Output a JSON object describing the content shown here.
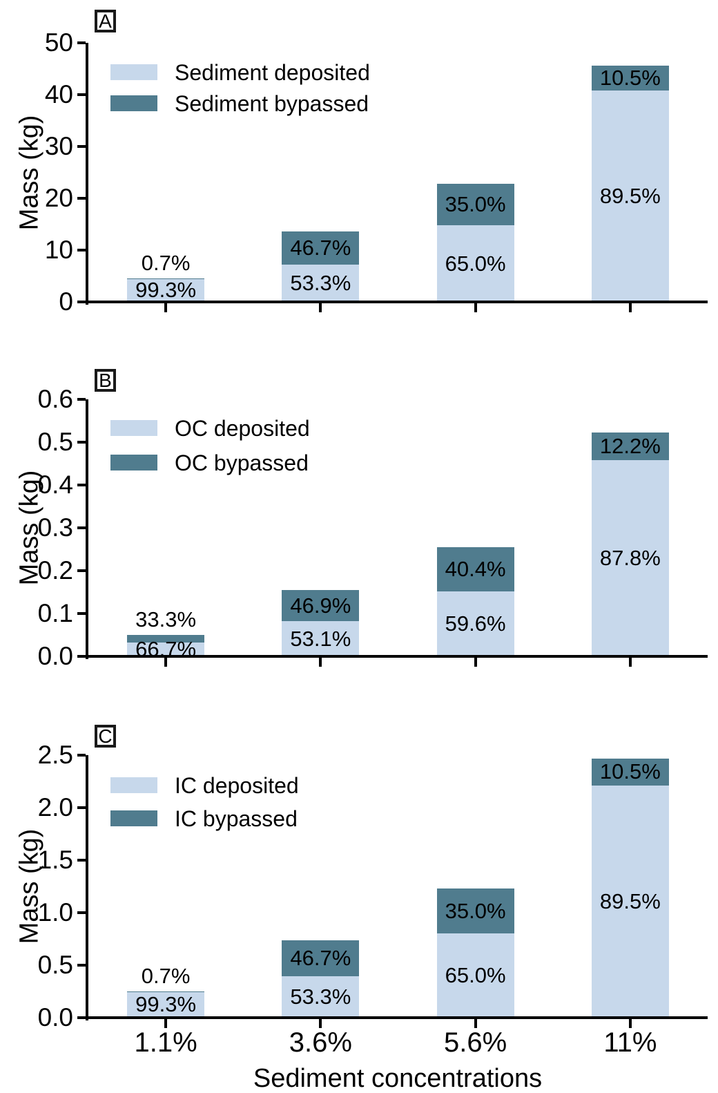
{
  "figure": {
    "xlabel": "Sediment concentrations",
    "colors": {
      "deposited": "#c7d8eb",
      "bypassed": "#507c8e",
      "axis": "#000000",
      "text": "#000000",
      "background": "#ffffff"
    }
  },
  "chart_data": [
    {
      "type": "bar",
      "stacked": true,
      "panel_letter": "A",
      "title": "",
      "ylabel": "Mass (kg)",
      "ylim": [
        0,
        50
      ],
      "yticks": [
        "0",
        "10",
        "20",
        "30",
        "40",
        "50"
      ],
      "categories": [
        "1.1%",
        "3.6%",
        "5.6%",
        "11%"
      ],
      "legend_position": "upper left",
      "grid": false,
      "series": [
        {
          "name": "Sediment deposited",
          "values": [
            4.57,
            7.22,
            14.79,
            40.81
          ],
          "percent_labels": [
            "99.3%",
            "53.3%",
            "65.0%",
            "89.5%"
          ]
        },
        {
          "name": "Sediment bypassed",
          "values": [
            0.03,
            6.33,
            7.96,
            4.79
          ],
          "percent_labels": [
            "0.7%",
            "46.7%",
            "35.0%",
            "10.5%"
          ],
          "label_above_bar": [
            true,
            false,
            false,
            false
          ]
        }
      ]
    },
    {
      "type": "bar",
      "stacked": true,
      "panel_letter": "B",
      "title": "",
      "ylabel": "Mass (kg)",
      "ylim": [
        0,
        0.6
      ],
      "yticks": [
        "0.0",
        "0.1",
        "0.2",
        "0.3",
        "0.4",
        "0.5",
        "0.6"
      ],
      "categories": [
        "1.1%",
        "3.6%",
        "5.6%",
        "11%"
      ],
      "legend_position": "upper left",
      "grid": false,
      "series": [
        {
          "name": "OC deposited",
          "values": [
            0.033,
            0.082,
            0.152,
            0.458
          ],
          "percent_labels": [
            "66.7%",
            "53.1%",
            "59.6%",
            "87.8%"
          ]
        },
        {
          "name": "OC bypassed",
          "values": [
            0.017,
            0.073,
            0.103,
            0.064
          ],
          "percent_labels": [
            "33.3%",
            "46.9%",
            "40.4%",
            "12.2%"
          ],
          "label_above_bar": [
            true,
            false,
            false,
            false
          ]
        }
      ]
    },
    {
      "type": "bar",
      "stacked": true,
      "panel_letter": "C",
      "title": "",
      "ylabel": "Mass (kg)",
      "ylim": [
        0,
        2.5
      ],
      "yticks": [
        "0.0",
        "0.5",
        "1.0",
        "1.5",
        "2.0",
        "2.5"
      ],
      "categories": [
        "1.1%",
        "3.6%",
        "5.6%",
        "11%"
      ],
      "legend_position": "upper left",
      "grid": false,
      "series": [
        {
          "name": "IC deposited",
          "values": [
            0.25,
            0.395,
            0.8,
            2.21
          ],
          "percent_labels": [
            "99.3%",
            "53.3%",
            "65.0%",
            "89.5%"
          ]
        },
        {
          "name": "IC bypassed",
          "values": [
            0.002,
            0.345,
            0.43,
            0.26
          ],
          "percent_labels": [
            "0.7%",
            "46.7%",
            "35.0%",
            "10.5%"
          ],
          "label_above_bar": [
            true,
            false,
            false,
            false
          ]
        }
      ]
    }
  ]
}
